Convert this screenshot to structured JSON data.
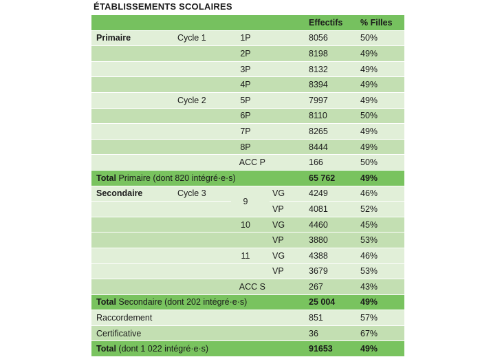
{
  "title": "ÉTABLISSEMENTS SCOLAIRES",
  "headers": {
    "effectifs": "Effectifs",
    "filles": "% Filles"
  },
  "primaire": {
    "label": "Primaire",
    "cycle1": "Cycle 1",
    "cycle2": "Cycle 2",
    "rows": [
      {
        "level": "1P",
        "effectifs": "8056",
        "filles": "50%"
      },
      {
        "level": "2P",
        "effectifs": "8198",
        "filles": "49%"
      },
      {
        "level": "3P",
        "effectifs": "8132",
        "filles": "49%"
      },
      {
        "level": "4P",
        "effectifs": "8394",
        "filles": "49%"
      },
      {
        "level": "5P",
        "effectifs": "7997",
        "filles": "49%"
      },
      {
        "level": "6P",
        "effectifs": "8110",
        "filles": "50%"
      },
      {
        "level": "7P",
        "effectifs": "8265",
        "filles": "49%"
      },
      {
        "level": "8P",
        "effectifs": "8444",
        "filles": "49%"
      },
      {
        "level": "ACC P",
        "effectifs": "166",
        "filles": "50%"
      }
    ],
    "total": {
      "label": "Total",
      "rest": " Primaire (dont 820 intégré·e·s)",
      "effectifs": "65 762",
      "filles": "49%"
    }
  },
  "secondaire": {
    "label": "Secondaire",
    "cycle3": "Cycle 3",
    "groups": [
      {
        "level": "9",
        "rows": [
          {
            "section": "VG",
            "effectifs": "4249",
            "filles": "46%"
          },
          {
            "section": "VP",
            "effectifs": "4081",
            "filles": "52%"
          }
        ]
      },
      {
        "level": "10",
        "rows": [
          {
            "section": "VG",
            "effectifs": "4460",
            "filles": "45%"
          },
          {
            "section": "VP",
            "effectifs": "3880",
            "filles": "53%"
          }
        ]
      },
      {
        "level": "11",
        "rows": [
          {
            "section": "VG",
            "effectifs": "4388",
            "filles": "46%"
          },
          {
            "section": "VP",
            "effectifs": "3679",
            "filles": "53%"
          }
        ]
      }
    ],
    "acc": {
      "level": "ACC S",
      "effectifs": "267",
      "filles": "43%"
    },
    "total": {
      "label": "Total",
      "rest": " Secondaire (dont 202 intégré·e·s)",
      "effectifs": "25 004",
      "filles": "49%"
    }
  },
  "raccordement": {
    "label": "Raccordement",
    "effectifs": "851",
    "filles": "57%"
  },
  "certificative": {
    "label": "Certificative",
    "effectifs": "36",
    "filles": "67%"
  },
  "grand_total": {
    "label": "Total",
    "rest": " (dont 1 022 intégré·e·s)",
    "effectifs": "91653",
    "filles": "49%"
  }
}
